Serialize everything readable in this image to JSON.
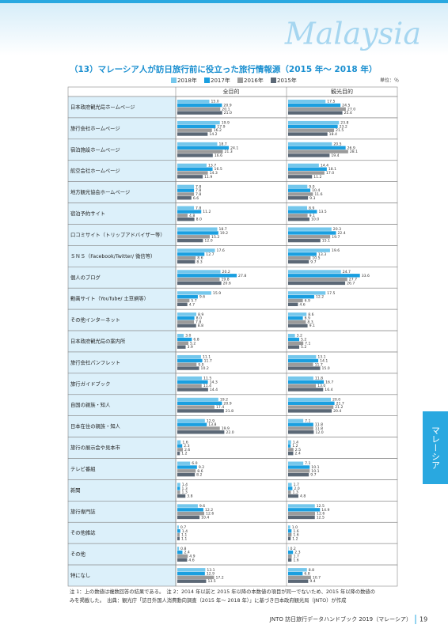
{
  "header": {
    "country": "Malaysia"
  },
  "side_tab": "マレーシア",
  "chart_data": {
    "type": "bar",
    "title": "（13）マレーシア人が訪日旅行前に役立った旅行情報源（2015 年～ 2018 年）",
    "unit": "単位：％",
    "xlim": [
      0,
      50
    ],
    "series": [
      {
        "name": "2018年",
        "color": "#74c7ec"
      },
      {
        "name": "2017年",
        "color": "#1a9fe0"
      },
      {
        "name": "2016年",
        "color": "#9b9b9b"
      },
      {
        "name": "2015年",
        "color": "#5b6876"
      }
    ],
    "categories": [
      "日本政府観光局ホームページ",
      "旅行会社ホームページ",
      "宿泊施設ホームページ",
      "航空会社ホームページ",
      "地方観光協会ホームページ",
      "宿泊予約サイト",
      "口コミサイト（トリップアドバイザー等）",
      "ＳＮＳ（Facebook/Twitter/ 微信等）",
      "個人のブログ",
      "動画サイト（YouTube/ 土豆網等）",
      "その他インターネット",
      "日本政府観光局の案内所",
      "旅行会社パンフレット",
      "旅行ガイドブック",
      "自国の親族・知人",
      "日本在住の親族・知人",
      "旅行の展示会や見本市",
      "テレビ番組",
      "新聞",
      "旅行専門誌",
      "その他雑誌",
      "その他",
      "特になし"
    ],
    "panels": [
      {
        "title": "全目的",
        "values": [
          [
            15.0,
            19.9,
            18.7,
            13.7,
            7.8,
            7.8,
            18.7,
            17.6,
            20.2,
            15.9,
            8.9,
            3.0,
            11.1,
            11.5,
            19.2,
            12.9,
            1.6,
            6.0,
            1.4,
            9.6,
            0.7,
            0.8,
            13.1
          ],
          [
            20.9,
            17.9,
            24.1,
            16.5,
            7.8,
            11.2,
            19.2,
            12.7,
            27.8,
            9.6,
            8.0,
            6.8,
            11.7,
            14.3,
            20.9,
            13.8,
            2.3,
            9.2,
            1.3,
            12.2,
            1.4,
            2.4,
            12.9
          ],
          [
            20.1,
            16.2,
            21.3,
            14.3,
            7.8,
            4.8,
            15.2,
            8.6,
            19.8,
            5.7,
            7.8,
            5.2,
            9.0,
            11.4,
            17.4,
            19.9,
            2.6,
            8.6,
            1.3,
            12.6,
            1.1,
            4.9,
            17.2
          ],
          [
            21.0,
            14.2,
            16.6,
            11.9,
            6.6,
            8.0,
            12.0,
            8.3,
            20.6,
            4.7,
            8.8,
            3.9,
            10.2,
            14.4,
            21.8,
            22.0,
            1.2,
            8.2,
            3.8,
            10.4,
            1.1,
            4.6,
            13.5
          ]
        ],
        "value_labels": [
          [
            "15.0",
            "19.9",
            "18.7",
            "13.7",
            "7.8",
            "7.8",
            "18.7",
            "17.6",
            "20.2",
            "15.9",
            "8.9",
            "3.0",
            "11.1",
            "11.5",
            "19.2",
            "12.9",
            "1.6",
            "6.0",
            "1.4",
            "9.6",
            "0.7",
            "0.8",
            "13.1"
          ],
          [
            "20.9",
            "17.9",
            "24.1",
            "16.5",
            "7.8",
            "11.2",
            "19.2",
            "12.7",
            "27.8",
            "9.6",
            "8.0",
            "6.8",
            "11.7",
            "14.3",
            "20.9",
            "13.8",
            "2.3",
            "9.2",
            "1.3",
            "12.2",
            "1.4",
            "2.4",
            "12.9"
          ],
          [
            "20.1",
            "16.2",
            "21.3",
            "14.3",
            "7.8",
            "4.8",
            "15.2",
            "8.6",
            "19.8",
            "5.7",
            "7.8",
            "5.2",
            "9.0",
            "11.4",
            "17.4",
            "19.9",
            "2.6",
            "8.6",
            "1.3",
            "12.6",
            "1.1",
            "4.9",
            "17.2"
          ],
          [
            "21.0",
            "14.2",
            "16.6",
            "11.9",
            "6.6",
            "8.0",
            "12.0",
            "8.3",
            "20.6",
            "4.7",
            "8.8",
            "3.9",
            "10.2",
            "14.4",
            "21.8",
            "22.0",
            "1.2",
            "8.2",
            "3.8",
            "10.4",
            "1.1",
            "4.6",
            "13.5"
          ]
        ]
      },
      {
        "title": "観光目的",
        "values": [
          [
            17.5,
            23.8,
            20.5,
            14.4,
            9.0,
            8.9,
            20.3,
            19.6,
            24.7,
            17.5,
            8.6,
            3.2,
            13.1,
            11.8,
            20.0,
            7.1,
            1.4,
            7.1,
            1.7,
            12.5,
            1.0,
            0.2,
            8.8
          ],
          [
            24.5,
            23.2,
            26.9,
            18.1,
            10.4,
            13.5,
            22.4,
            13.3,
            33.6,
            12.2,
            6.9,
            5.2,
            14.1,
            16.7,
            21.7,
            11.8,
            1.2,
            10.1,
            2.0,
            14.9,
            1.6,
            2.3,
            6.8
          ],
          [
            27.0,
            21.5,
            28.1,
            17.0,
            11.6,
            9.1,
            19.7,
            10.5,
            27.7,
            6.9,
            8.3,
            7.1,
            11.7,
            13.0,
            21.2,
            11.8,
            2.5,
            10.1,
            1.3,
            12.6,
            1.6,
            1.7,
            10.7
          ],
          [
            25.4,
            18.4,
            19.4,
            11.2,
            9.3,
            10.0,
            15.1,
            9.7,
            26.7,
            4.6,
            9.1,
            5.2,
            15.0,
            16.4,
            20.4,
            12.0,
            2.4,
            9.7,
            4.8,
            12.5,
            1.2,
            1.6,
            9.4
          ]
        ],
        "value_labels": [
          [
            "17.5",
            "23.8",
            "20.5",
            "14.4",
            "9.0",
            "8.9",
            "20.3",
            "19.6",
            "24.7",
            "17.5",
            "8.6",
            "3.2",
            "13.1",
            "11.8",
            "20.0",
            "7.1",
            "1.4",
            "7.1",
            "1.7",
            "12.5",
            "1.0",
            "0.2",
            "8.8"
          ],
          [
            "24.5",
            "23.2",
            "26.9",
            "18.1",
            "10.4",
            "13.5",
            "22.4",
            "13.3",
            "33.6",
            "12.2",
            "6.9",
            "5.2",
            "14.1",
            "16.7",
            "21.7",
            "11.8",
            "1.2",
            "10.1",
            "2.0",
            "14.9",
            "1.6",
            "2.3",
            "6.8"
          ],
          [
            "27.0",
            "21.5",
            "28.1",
            "17.0",
            "11.6",
            "9.1",
            "19.7",
            "10.5",
            "27.7",
            "6.9",
            "8.3",
            "7.1",
            "11.7",
            "13.0",
            "21.2",
            "11.8",
            "2.5",
            "10.1",
            "1.3",
            "12.6",
            "1.6",
            "1.7",
            "10.7"
          ],
          [
            "25.4",
            "18.4",
            "19.4",
            "11.2",
            "9.3",
            "10.0",
            "15.1",
            "9.7",
            "26.7",
            "4.6",
            "9.1",
            "5.2",
            "15.0",
            "16.4",
            "20.4",
            "12.0",
            "2.4",
            "9.7",
            "4.8",
            "12.5",
            "1.2",
            "1.6",
            "9.4"
          ]
        ]
      }
    ],
    "notes": [
      "注 1：上の数値は複数回答の結果である。　注 2：2014 年以前と 2015 年以降の本数値の項目が同一でないため、2015 年以降の数値の",
      "みを掲載した。　出典：観光庁「訪日外国人消費動向調査（2015 年～ 2018 年）」に基づき日本政府観光局（JNTO）が作成"
    ]
  },
  "footer": {
    "text": "JNTO 訪日旅行データハンドブック 2019（マレーシア）",
    "page": "19"
  }
}
